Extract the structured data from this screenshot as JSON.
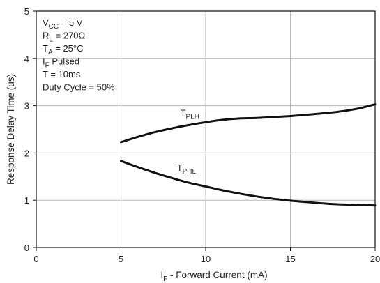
{
  "chart_data": {
    "type": "line",
    "xlabel_main": "I",
    "xlabel_sub": "F",
    "xlabel_rest": " - Forward Current (mA)",
    "ylabel": "Response Delay Time (us)",
    "xlim": [
      0,
      20
    ],
    "ylim": [
      0,
      5
    ],
    "x_ticks": [
      0,
      5,
      10,
      15,
      20
    ],
    "y_ticks": [
      0,
      1,
      2,
      3,
      4,
      5
    ],
    "grid": true,
    "conditions": [
      {
        "main": "V",
        "sub": "CC",
        "rest": " = 5 V"
      },
      {
        "main": "R",
        "sub": "L",
        "rest": " = 270Ω"
      },
      {
        "main": "T",
        "sub": "A",
        "rest": " = 25°C"
      },
      {
        "main": "I",
        "sub": "F",
        "rest": " Pulsed"
      },
      {
        "main": "T = 10ms",
        "sub": "",
        "rest": ""
      },
      {
        "main": "Duty Cycle = 50%",
        "sub": "",
        "rest": ""
      }
    ],
    "series": [
      {
        "name_main": "T",
        "name_sub": "PLH",
        "label_at": [
          8.5,
          2.78
        ],
        "x": [
          5,
          6,
          7,
          8,
          9,
          10,
          11,
          12,
          13,
          14,
          15,
          16,
          17,
          18,
          19,
          20
        ],
        "y": [
          2.23,
          2.34,
          2.44,
          2.52,
          2.59,
          2.65,
          2.7,
          2.73,
          2.74,
          2.76,
          2.78,
          2.81,
          2.84,
          2.88,
          2.94,
          3.03
        ]
      },
      {
        "name_main": "T",
        "name_sub": "PHL",
        "label_at": [
          8.3,
          1.62
        ],
        "x": [
          5,
          6,
          7,
          8,
          9,
          10,
          11,
          12,
          13,
          14,
          15,
          16,
          17,
          18,
          19,
          20
        ],
        "y": [
          1.83,
          1.7,
          1.58,
          1.47,
          1.37,
          1.29,
          1.21,
          1.14,
          1.08,
          1.03,
          0.99,
          0.96,
          0.93,
          0.91,
          0.9,
          0.89
        ]
      }
    ]
  }
}
